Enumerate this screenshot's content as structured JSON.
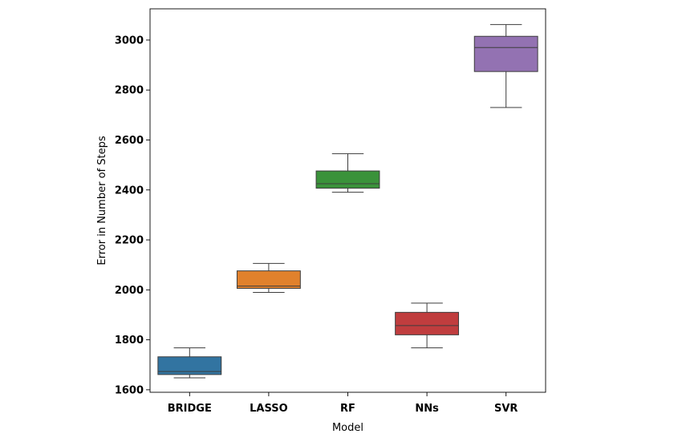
{
  "chart_data": {
    "type": "box",
    "xlabel": "Model",
    "ylabel": "Error in Number of Steps",
    "ylim": [
      1590,
      3125
    ],
    "yticks": [
      1600,
      1800,
      2000,
      2200,
      2400,
      2600,
      2800,
      3000
    ],
    "grid": false,
    "legend": "none",
    "categories": [
      "BRIDGE",
      "LASSO",
      "RF",
      "NNs",
      "SVR"
    ],
    "boxes": [
      {
        "category": "BRIDGE",
        "whisker_low": 1648,
        "q1": 1661,
        "median": 1673,
        "q3": 1732,
        "whisker_high": 1768,
        "color": "#3274a1"
      },
      {
        "category": "LASSO",
        "whisker_low": 1990,
        "q1": 2006,
        "median": 2015,
        "q3": 2076,
        "whisker_high": 2106,
        "color": "#e1812c"
      },
      {
        "category": "RF",
        "whisker_low": 2391,
        "q1": 2407,
        "median": 2425,
        "q3": 2476,
        "whisker_high": 2545,
        "color": "#3a923a"
      },
      {
        "category": "NNs",
        "whisker_low": 1768,
        "q1": 1820,
        "median": 1857,
        "q3": 1910,
        "whisker_high": 1947,
        "color": "#c03d3e"
      },
      {
        "category": "SVR",
        "whisker_low": 2730,
        "q1": 2874,
        "median": 2970,
        "q3": 3015,
        "whisker_high": 3062,
        "color": "#9372b2"
      }
    ]
  }
}
